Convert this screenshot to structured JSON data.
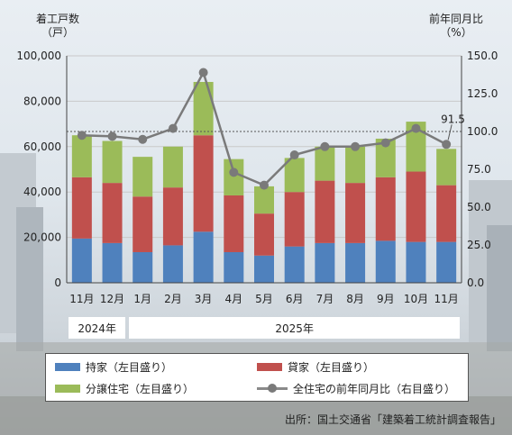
{
  "left_axis_title": [
    "着工戸数",
    "（戸）"
  ],
  "right_axis_title": [
    "前年同月比",
    "（%）"
  ],
  "years": [
    {
      "label": "2024年",
      "start": 0,
      "end": 1
    },
    {
      "label": "2025年",
      "start": 2,
      "end": 12
    }
  ],
  "legend": {
    "owned": "持家（左目盛り）",
    "rental": "貸家（左目盛り）",
    "condo": "分譲住宅（左目盛り）",
    "yoy": "全住宅の前年同月比（右目盛り）"
  },
  "source": "出所：国土交通省「建築着工統計調査報告」",
  "colors": {
    "owned": "#4f81bd",
    "rental": "#c0504d",
    "condo": "#9bbb59",
    "yoy": "#7a7a7a"
  },
  "chart_data": {
    "type": "bar",
    "stacked": true,
    "categories": [
      "11月",
      "12月",
      "1月",
      "2月",
      "3月",
      "4月",
      "5月",
      "6月",
      "7月",
      "8月",
      "9月",
      "10月",
      "11月"
    ],
    "series": [
      {
        "name": "持家（左目盛り）",
        "values": [
          19500,
          17500,
          13500,
          16500,
          22500,
          13500,
          12000,
          16000,
          17500,
          17500,
          18500,
          18000,
          18000
        ]
      },
      {
        "name": "貸家（左目盛り）",
        "values": [
          27000,
          26500,
          24500,
          25500,
          42500,
          25000,
          18500,
          24000,
          27500,
          26500,
          28000,
          31000,
          25000
        ]
      },
      {
        "name": "分譲住宅（左目盛り）",
        "values": [
          18500,
          18500,
          17500,
          18000,
          23500,
          16000,
          12000,
          15000,
          15000,
          16000,
          17000,
          22000,
          16000
        ]
      }
    ],
    "line": {
      "name": "全住宅の前年同月比（右目盛り）",
      "values": [
        97.5,
        96.8,
        94.8,
        102.0,
        139.0,
        73.0,
        64.5,
        84.5,
        90.0,
        90.0,
        92.5,
        102.0,
        91.5
      ]
    },
    "annotation": {
      "index": 12,
      "text": "91.5"
    },
    "reference_line": 100,
    "y_left": {
      "min": 0,
      "max": 100000,
      "ticks": [
        "0",
        "20,000",
        "40,000",
        "60,000",
        "80,000",
        "100,000"
      ]
    },
    "y_right": {
      "min": 0,
      "max": 150,
      "ticks": [
        "0.0",
        "25.0",
        "50.0",
        "75.0",
        "100.0",
        "125.0",
        "150.0"
      ]
    }
  }
}
